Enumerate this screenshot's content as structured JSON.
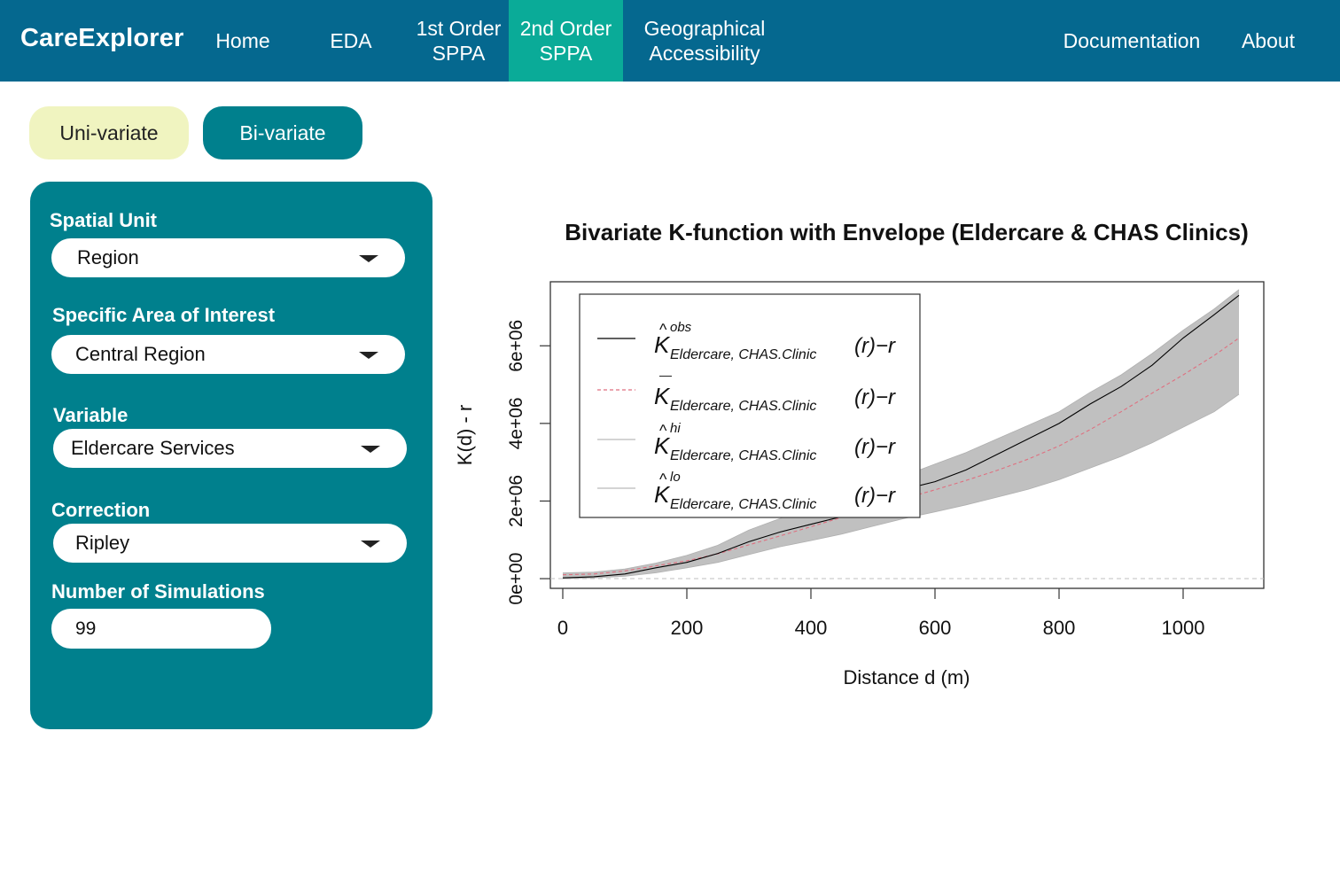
{
  "navbar": {
    "brand": "CareExplorer",
    "items": [
      {
        "line1": "Home",
        "line2": ""
      },
      {
        "line1": "EDA",
        "line2": ""
      },
      {
        "line1": "1st Order",
        "line2": "SPPA"
      },
      {
        "line1": "2nd Order",
        "line2": "SPPA"
      },
      {
        "line1": "Geographical",
        "line2": "Accessibility"
      },
      {
        "line1": "Documentation",
        "line2": ""
      },
      {
        "line1": "About",
        "line2": ""
      }
    ],
    "active_index": 3,
    "colors": {
      "bar": "#05688f",
      "active": "#0aab98"
    }
  },
  "tabs": {
    "univariate": "Uni-variate",
    "bivariate": "Bi-variate"
  },
  "panel": {
    "spatial_unit": {
      "label": "Spatial Unit",
      "value": "Region"
    },
    "area": {
      "label": "Specific Area of Interest",
      "value": "Central Region"
    },
    "variable": {
      "label": "Variable",
      "value": "Eldercare Services"
    },
    "correction": {
      "label": "Correction",
      "value": "Ripley"
    },
    "simulations": {
      "label": "Number of Simulations",
      "value": "99"
    }
  },
  "chart_data": {
    "type": "line",
    "title": "Bivariate K-function with Envelope (Eldercare & CHAS Clinics)",
    "xlabel": "Distance d (m)",
    "ylabel": "K(d) - r",
    "xlim": [
      -20,
      1130
    ],
    "ylim": [
      -250000,
      7650000
    ],
    "xticks": [
      0,
      200,
      400,
      600,
      800,
      1000
    ],
    "xtick_labels": [
      "0",
      "200",
      "400",
      "600",
      "800",
      "1000"
    ],
    "yticks": [
      0,
      2000000,
      4000000,
      6000000
    ],
    "ytick_labels": [
      "0e+00",
      "2e+06",
      "4e+06",
      "6e+06"
    ],
    "legend": {
      "position": "top-left",
      "entries": [
        {
          "hat": "^",
          "sup": "obs",
          "sub": "Eldercare, CHAS.Clinic",
          "tail": "(r)−r",
          "style": "solid",
          "color": "#000000"
        },
        {
          "hat": "—",
          "sup": "",
          "sub": "Eldercare, CHAS.Clinic",
          "tail": "(r)−r",
          "style": "dashed",
          "color": "#df6f7f"
        },
        {
          "hat": "^",
          "sup": "hi",
          "sub": "Eldercare, CHAS.Clinic",
          "tail": "(r)−r",
          "style": "solid",
          "color": "#bbbbbb"
        },
        {
          "hat": "^",
          "sup": "lo",
          "sub": "Eldercare, CHAS.Clinic",
          "tail": "(r)−r",
          "style": "solid",
          "color": "#bbbbbb"
        }
      ]
    },
    "x": [
      0,
      50,
      100,
      150,
      200,
      250,
      300,
      350,
      400,
      450,
      500,
      550,
      600,
      650,
      700,
      750,
      800,
      850,
      900,
      950,
      1000,
      1050,
      1090
    ],
    "series": [
      {
        "style": "obs",
        "color": "#000000",
        "values": [
          20000,
          50000,
          120000,
          280000,
          420000,
          650000,
          950000,
          1200000,
          1400000,
          1600000,
          1950000,
          2300000,
          2500000,
          2800000,
          3200000,
          3600000,
          4000000,
          4500000,
          4950000,
          5500000,
          6200000,
          6800000,
          7300000
        ]
      },
      {
        "style": "theo",
        "color": "#df6f7f",
        "values": [
          100000,
          120000,
          200000,
          330000,
          460000,
          640000,
          870000,
          1100000,
          1340000,
          1580000,
          1820000,
          2060000,
          2290000,
          2530000,
          2790000,
          3080000,
          3420000,
          3840000,
          4300000,
          4780000,
          5250000,
          5750000,
          6200000
        ]
      },
      {
        "style": "hi",
        "color": "#bbbbbb",
        "values": [
          150000,
          170000,
          250000,
          400000,
          600000,
          860000,
          1250000,
          1550000,
          1850000,
          2100000,
          2350000,
          2650000,
          2950000,
          3250000,
          3600000,
          3950000,
          4300000,
          4800000,
          5250000,
          5800000,
          6400000,
          6950000,
          7450000
        ]
      },
      {
        "style": "lo",
        "color": "#bbbbbb",
        "values": [
          0,
          20000,
          60000,
          150000,
          280000,
          420000,
          620000,
          820000,
          980000,
          1150000,
          1350000,
          1550000,
          1720000,
          1900000,
          2100000,
          2300000,
          2550000,
          2850000,
          3150000,
          3500000,
          3900000,
          4300000,
          4750000
        ]
      }
    ]
  }
}
